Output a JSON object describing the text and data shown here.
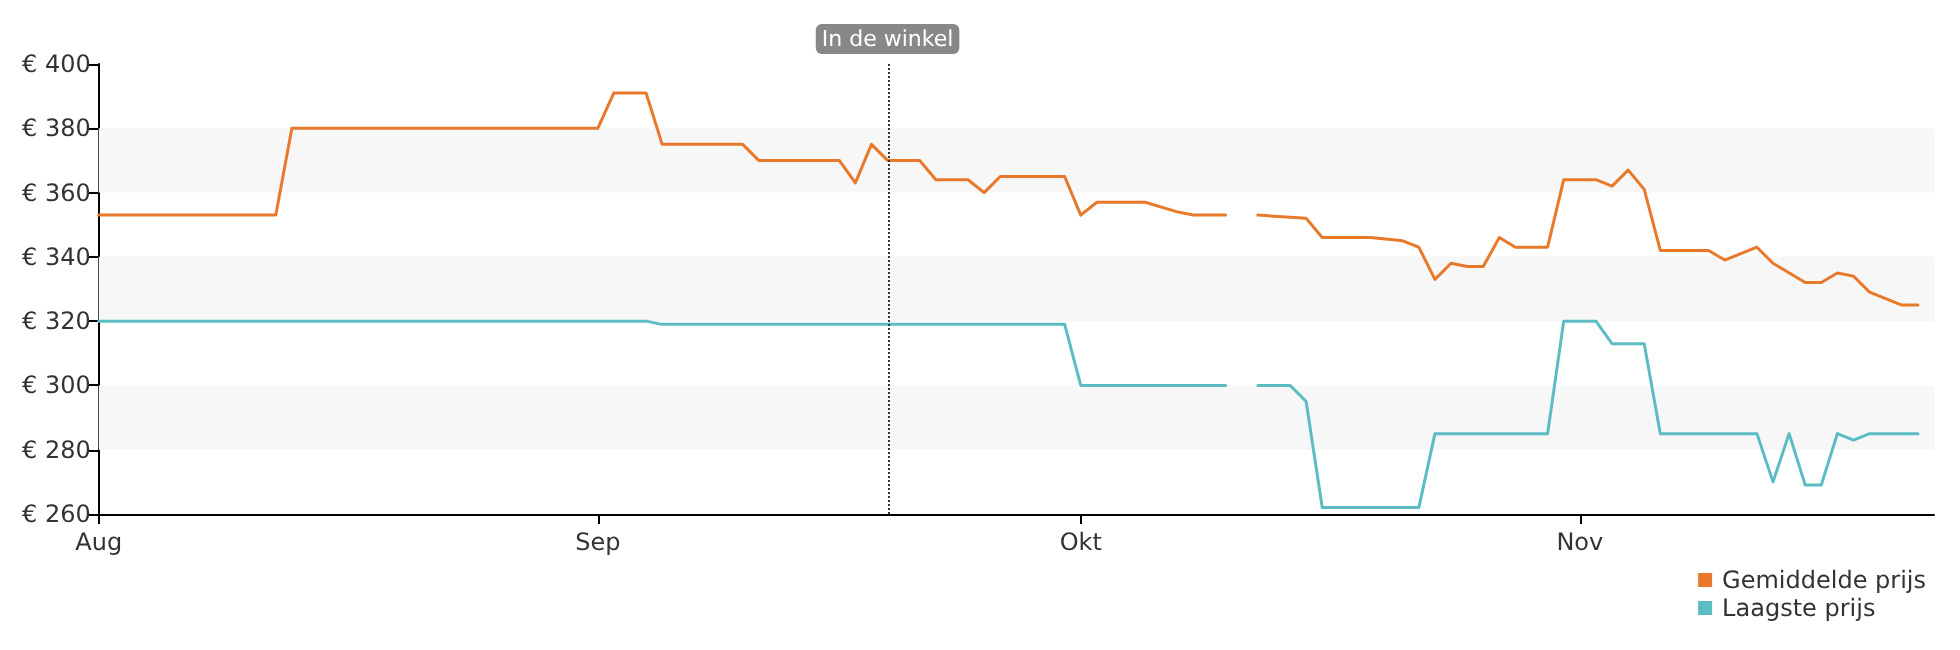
{
  "chart_data": {
    "type": "line",
    "xlim": [
      "--08-01",
      "--11-23"
    ],
    "xticks": [
      {
        "value": "--08-01",
        "label": "Aug"
      },
      {
        "value": "--09-01",
        "label": "Sep"
      },
      {
        "value": "--10-01",
        "label": "Okt"
      },
      {
        "value": "--11-01",
        "label": "Nov"
      }
    ],
    "ylim": [
      260,
      400
    ],
    "yticks": [
      {
        "value": 260,
        "label": "€ 260"
      },
      {
        "value": 280,
        "label": "€ 280"
      },
      {
        "value": 300,
        "label": "€ 300"
      },
      {
        "value": 320,
        "label": "€ 320"
      },
      {
        "value": 340,
        "label": "€ 340"
      },
      {
        "value": 360,
        "label": "€ 360"
      },
      {
        "value": 380,
        "label": "€ 380"
      },
      {
        "value": 400,
        "label": "€ 400"
      }
    ],
    "bands": [
      {
        "axis": "y",
        "from": 280,
        "to": 300,
        "color": "#f7f7f7"
      },
      {
        "axis": "y",
        "from": 320,
        "to": 340,
        "color": "#f7f7f7"
      },
      {
        "axis": "y",
        "from": 360,
        "to": 380,
        "color": "#f7f7f7"
      }
    ],
    "legend": "bottom right",
    "marker": "none",
    "line_style": "solid",
    "ref_lines": [
      {
        "axis": "x",
        "value": "--09-19",
        "label": "In de winkel",
        "line_style": "dotted",
        "color": "#333333"
      }
    ],
    "series": [
      {
        "name": "Gemiddelde prijs",
        "color": "#e8792b",
        "x": [
          "--08-01",
          "--08-12",
          "--08-13",
          "--09-01",
          "--09-02",
          "--09-04",
          "--09-05",
          "--09-10",
          "--09-11",
          "--09-16",
          "--09-17",
          "--09-18",
          "--09-19",
          "--09-21",
          "--09-22",
          "--09-24",
          "--09-25",
          "--09-26",
          "--09-30",
          "--10-01",
          "--10-02",
          "--10-05",
          "--10-07",
          "--10-08",
          "--10-10",
          "--10-11",
          "--10-12",
          "--10-15",
          "--10-16",
          "--10-19",
          "--10-21",
          "--10-22",
          "--10-23",
          "--10-24",
          "--10-25",
          "--10-26",
          "--10-27",
          "--10-28",
          "--10-30",
          "--10-31",
          "--11-02",
          "--11-03",
          "--11-04",
          "--11-05",
          "--11-06",
          "--11-09",
          "--11-10",
          "--11-12",
          "--11-13",
          "--11-15",
          "--11-16",
          "--11-17",
          "--11-18",
          "--11-19",
          "--11-21",
          "--11-22"
        ],
        "values": [
          353,
          353,
          380,
          380,
          391,
          391,
          375,
          375,
          370,
          370,
          363,
          375,
          370,
          370,
          364,
          364,
          360,
          365,
          365,
          353,
          357,
          357,
          354,
          353,
          353,
          null,
          353,
          352,
          346,
          346,
          345,
          343,
          333,
          338,
          337,
          337,
          346,
          343,
          343,
          364,
          364,
          362,
          367,
          361,
          342,
          342,
          339,
          343,
          338,
          332,
          332,
          335,
          334,
          329,
          325,
          325
        ]
      },
      {
        "name": "Laagste prijs",
        "color": "#5bbcc4",
        "x": [
          "--08-01",
          "--09-04",
          "--09-05",
          "--09-30",
          "--10-01",
          "--10-10",
          "--10-11",
          "--10-12",
          "--10-14",
          "--10-15",
          "--10-16",
          "--10-22",
          "--10-23",
          "--10-30",
          "--10-31",
          "--11-02",
          "--11-03",
          "--11-05",
          "--11-06",
          "--11-12",
          "--11-13",
          "--11-14",
          "--11-15",
          "--11-16",
          "--11-17",
          "--11-18",
          "--11-19",
          "--11-22"
        ],
        "values": [
          320,
          320,
          319,
          319,
          300,
          300,
          null,
          300,
          300,
          295,
          262,
          262,
          285,
          285,
          320,
          320,
          313,
          313,
          285,
          285,
          270,
          285,
          269,
          269,
          285,
          283,
          285,
          285
        ]
      }
    ]
  }
}
